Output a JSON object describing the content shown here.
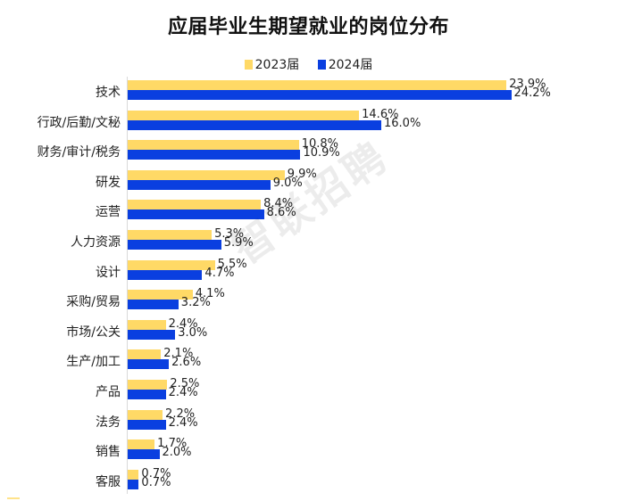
{
  "title": "应届毕业生期望就业的岗位分布",
  "legend": [
    {
      "label": "2023届",
      "color": "#FFD966"
    },
    {
      "label": "2024届",
      "color": "#0A3FE0"
    }
  ],
  "watermark": "智联招聘",
  "chart_data": {
    "type": "bar",
    "orientation": "horizontal",
    "title": "应届毕业生期望就业的岗位分布",
    "xlabel": "",
    "ylabel": "",
    "unit": "%",
    "grid": false,
    "legend_position": "top",
    "categories": [
      "技术",
      "行政/后勤/文秘",
      "财务/审计/税务",
      "研发",
      "运营",
      "人力资源",
      "设计",
      "采购/贸易",
      "市场/公关",
      "生产/加工",
      "产品",
      "法务",
      "销售",
      "客服"
    ],
    "series": [
      {
        "name": "2023届",
        "color": "#FFD966",
        "values": [
          23.9,
          14.6,
          10.8,
          9.9,
          8.4,
          5.3,
          5.5,
          4.1,
          2.4,
          2.1,
          2.5,
          2.2,
          1.7,
          0.7
        ]
      },
      {
        "name": "2024届",
        "color": "#0A3FE0",
        "values": [
          24.2,
          16.0,
          10.9,
          9.0,
          8.6,
          5.9,
          4.7,
          3.2,
          3.0,
          2.6,
          2.4,
          2.4,
          2.0,
          0.7
        ]
      }
    ],
    "labels_2023": [
      "23.9%",
      "14.6%",
      "10.8%",
      "9.9%",
      "8.4%",
      "5.3%",
      "5.5%",
      "4.1%",
      "2.4%",
      "2.1%",
      "2.5%",
      "2.2%",
      "1.7%",
      "0.7%"
    ],
    "labels_2024": [
      "24.2%",
      "16.0%",
      "10.9%",
      "9.0%",
      "8.6%",
      "5.9%",
      "4.7%",
      "3.2%",
      "3.0%",
      "2.6%",
      "2.4%",
      "2.4%",
      "2.0%",
      "0.7%"
    ],
    "xlim": [
      0,
      26
    ]
  }
}
